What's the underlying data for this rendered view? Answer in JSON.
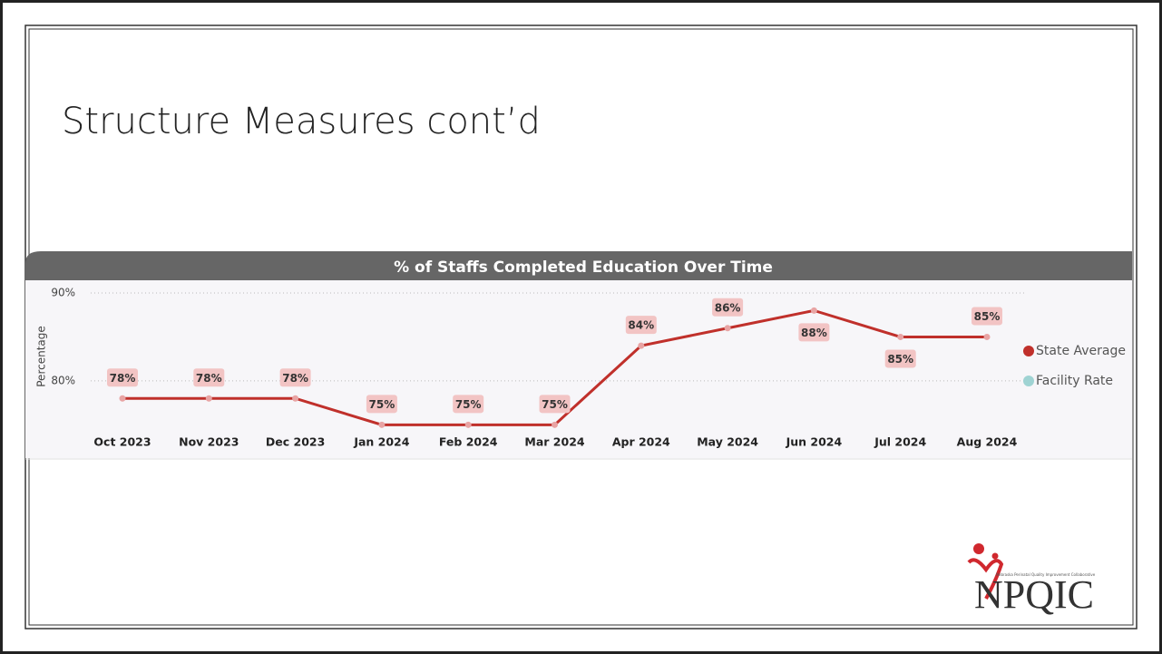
{
  "title": "Structure Measures cont’d",
  "chart_data": {
    "type": "line",
    "title": "% of Staffs Completed Education Over Time",
    "y_label": "Percentage",
    "categories": [
      "Oct 2023",
      "Nov 2023",
      "Dec 2023",
      "Jan 2024",
      "Feb 2024",
      "Mar 2024",
      "Apr 2024",
      "May 2024",
      "Jun 2024",
      "Jul 2024",
      "Aug 2024"
    ],
    "series": [
      {
        "name": "State Average",
        "color": "#c0302b",
        "values": [
          78,
          78,
          78,
          75,
          75,
          75,
          84,
          86,
          88,
          85,
          85
        ],
        "value_labels": [
          "78%",
          "78%",
          "78%",
          "75%",
          "75%",
          "75%",
          "84%",
          "86%",
          "88%",
          "85%",
          "85%"
        ]
      },
      {
        "name": "Facility Rate",
        "color": "#9fd3d3",
        "values": [
          null,
          null,
          null,
          null,
          null,
          null,
          null,
          null,
          null,
          null,
          null
        ]
      }
    ],
    "ylim": [
      74,
      90
    ],
    "yticks": [
      {
        "value": 80,
        "label": "80%"
      },
      {
        "value": 90,
        "label": "90%"
      }
    ],
    "grid": true,
    "legend": "right"
  },
  "logo": {
    "name": "NPQIC",
    "tagline": "Nebraska Perinatal Quality Improvement Collaborative"
  }
}
